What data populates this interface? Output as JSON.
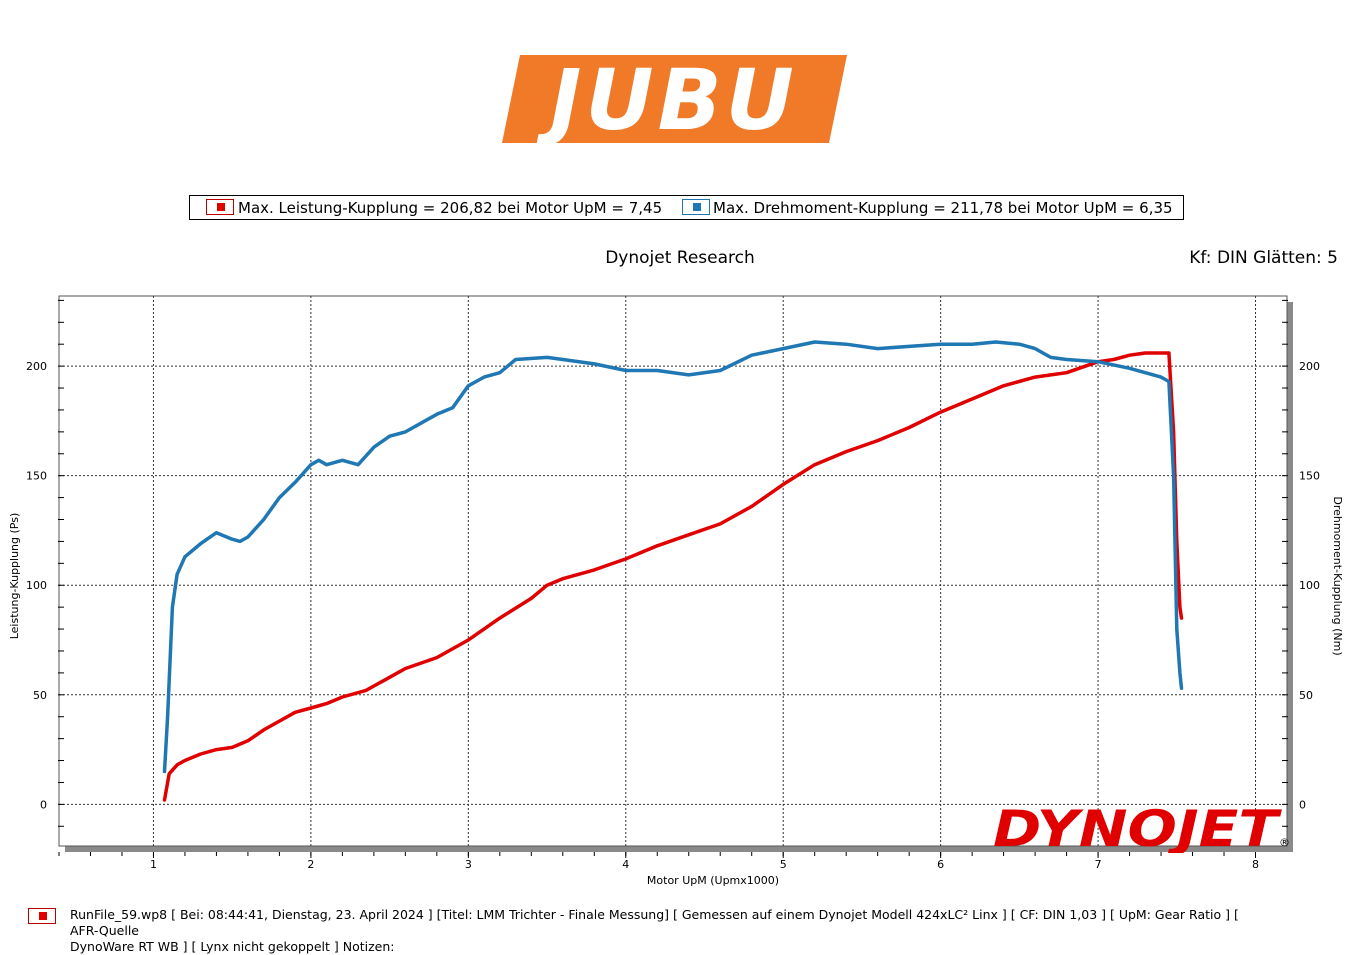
{
  "logo": {
    "text": "JUBU",
    "color": "#f07a28"
  },
  "legend": {
    "power": "Max. Leistung-Kupplung = 206,82 bei Motor UpM = 7,45",
    "torque": "Max. Drehmoment-Kupplung = 211,78 bei Motor UpM = 6,35"
  },
  "header": {
    "title": "Dynojet Research",
    "right": "Kf: DIN Glätten: 5"
  },
  "footer": {
    "line1": "RunFile_59.wp8 [ Bei: 08:44:41, Dienstag, 23. April 2024 ] [Titel: LMM Trichter - Finale Messung]  [ Gemessen auf einem Dynojet Modell 424xLC² Linx ] [ CF: DIN 1,03 ] [ UpM: Gear Ratio ] [ AFR-Quelle",
    "line2": "DynoWare RT WB ] [ Lynx nicht gekoppelt ] Notizen:"
  },
  "brand": {
    "text": "DYNOJET",
    "mark": "®",
    "color": "#e00000"
  },
  "chart_data": {
    "type": "line",
    "xlabel": "Motor UpM (Upmx1000)",
    "ylabel": "Leistung-Kupplung (Ps)",
    "y2label": "Drehmoment-Kupplung (Nm)",
    "xlim": [
      0.4,
      8.2
    ],
    "ylim": [
      -19,
      232
    ],
    "xticks": [
      "1",
      "2",
      "3",
      "4",
      "5",
      "6",
      "7",
      "8"
    ],
    "yticks": [
      "0",
      "50",
      "100",
      "150",
      "200"
    ],
    "y2ticks": [
      "0",
      "50",
      "100",
      "150",
      "200"
    ],
    "grid": true,
    "series": [
      {
        "name": "Leistung-Kupplung",
        "color": "#e00000",
        "x": [
          1.07,
          1.1,
          1.15,
          1.2,
          1.3,
          1.4,
          1.5,
          1.6,
          1.7,
          1.8,
          1.9,
          2.0,
          2.1,
          2.2,
          2.35,
          2.5,
          2.6,
          2.8,
          3.0,
          3.2,
          3.4,
          3.5,
          3.6,
          3.8,
          4.0,
          4.2,
          4.4,
          4.6,
          4.8,
          5.0,
          5.2,
          5.4,
          5.6,
          5.8,
          6.0,
          6.2,
          6.4,
          6.6,
          6.7,
          6.8,
          7.0,
          7.1,
          7.2,
          7.3,
          7.4,
          7.45,
          7.48,
          7.5,
          7.52,
          7.53
        ],
        "values": [
          2,
          14,
          18,
          20,
          23,
          25,
          26,
          29,
          34,
          38,
          42,
          44,
          46,
          49,
          52,
          58,
          62,
          67,
          75,
          85,
          94,
          100,
          103,
          107,
          112,
          118,
          123,
          128,
          136,
          146,
          155,
          161,
          166,
          172,
          179,
          185,
          191,
          195,
          196,
          197,
          202,
          203,
          205,
          206,
          206,
          206,
          170,
          120,
          90,
          85
        ]
      },
      {
        "name": "Drehmoment-Kupplung",
        "color": "#1f77b4",
        "x": [
          1.07,
          1.09,
          1.12,
          1.15,
          1.2,
          1.3,
          1.4,
          1.5,
          1.55,
          1.6,
          1.7,
          1.8,
          1.9,
          2.0,
          2.05,
          2.1,
          2.2,
          2.3,
          2.4,
          2.5,
          2.6,
          2.8,
          2.9,
          3.0,
          3.1,
          3.2,
          3.3,
          3.5,
          3.6,
          3.8,
          4.0,
          4.2,
          4.4,
          4.6,
          4.8,
          5.0,
          5.2,
          5.4,
          5.6,
          5.8,
          6.0,
          6.2,
          6.35,
          6.5,
          6.6,
          6.7,
          6.8,
          7.0,
          7.2,
          7.3,
          7.4,
          7.45,
          7.48,
          7.5,
          7.52,
          7.53
        ],
        "values": [
          15,
          40,
          90,
          105,
          113,
          119,
          124,
          121,
          120,
          122,
          130,
          140,
          147,
          155,
          157,
          155,
          157,
          155,
          163,
          168,
          170,
          178,
          181,
          191,
          195,
          197,
          203,
          204,
          203,
          201,
          198,
          198,
          196,
          198,
          205,
          208,
          211,
          210,
          208,
          209,
          210,
          210,
          211,
          210,
          208,
          204,
          203,
          202,
          199,
          197,
          195,
          193,
          150,
          80,
          60,
          53
        ]
      }
    ]
  }
}
